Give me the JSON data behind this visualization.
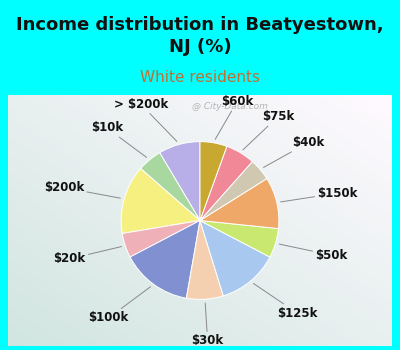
{
  "title": "Income distribution in Beatyestown,\nNJ (%)",
  "subtitle": "White residents",
  "bg_color": "#00FFFF",
  "chart_bg": "#d8ede4",
  "labels": [
    "> $200k",
    "$10k",
    "$200k",
    "$20k",
    "$100k",
    "$30k",
    "$125k",
    "$50k",
    "$150k",
    "$40k",
    "$75k",
    "$60k"
  ],
  "sizes": [
    8.5,
    5.0,
    14.0,
    5.0,
    14.5,
    7.5,
    12.5,
    6.0,
    10.5,
    4.5,
    6.0,
    5.5
  ],
  "colors": [
    "#b8aee8",
    "#a8d8a0",
    "#f5f080",
    "#f0b0b8",
    "#8090d0",
    "#f5d0b0",
    "#a8c8f0",
    "#c8e870",
    "#f0a868",
    "#d0c8b0",
    "#f08898",
    "#c8a830"
  ],
  "startangle": 90,
  "title_fontsize": 13,
  "subtitle_fontsize": 11,
  "label_fontsize": 8.5,
  "watermark": "@ City-Data.com"
}
